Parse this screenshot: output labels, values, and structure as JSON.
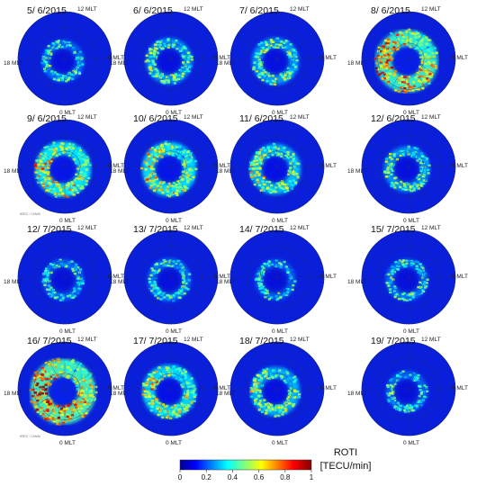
{
  "panels": [
    {
      "title": "5/ 6/2015",
      "activity": 0.15,
      "watermark": ""
    },
    {
      "title": "6/ 6/2015",
      "activity": 0.3,
      "watermark": ""
    },
    {
      "title": "7/ 6/2015",
      "activity": 0.32,
      "watermark": ""
    },
    {
      "title": "8/ 6/2015",
      "activity": 0.85,
      "watermark": ""
    },
    {
      "title": "9/ 6/2015",
      "activity": 0.62,
      "watermark": "IREC / UWM"
    },
    {
      "title": "10/ 6/2015",
      "activity": 0.58,
      "watermark": ""
    },
    {
      "title": "11/ 6/2015",
      "activity": 0.45,
      "watermark": ""
    },
    {
      "title": "12/ 6/2015",
      "activity": 0.28,
      "watermark": ""
    },
    {
      "title": "12/ 7/2015",
      "activity": 0.12,
      "watermark": ""
    },
    {
      "title": "13/ 7/2015",
      "activity": 0.18,
      "watermark": ""
    },
    {
      "title": "14/ 7/2015",
      "activity": 0.1,
      "watermark": ""
    },
    {
      "title": "15/ 7/2015",
      "activity": 0.15,
      "watermark": ""
    },
    {
      "title": "16/ 7/2015",
      "activity": 0.95,
      "watermark": "IREC / UWM"
    },
    {
      "title": "17/ 7/2015",
      "activity": 0.55,
      "watermark": ""
    },
    {
      "title": "18/ 7/2015",
      "activity": 0.4,
      "watermark": ""
    },
    {
      "title": "19/ 7/2015",
      "activity": 0.12,
      "watermark": ""
    }
  ],
  "mlt_labels": {
    "top": "12 MLT",
    "left": "18 MLT",
    "right": "6 MLT",
    "bottom": "0 MLT"
  },
  "colorbar": {
    "title": "ROTI",
    "units": "[TECU/min]",
    "ticks": [
      "0",
      "0.2",
      "0.4",
      "0.6",
      "0.8",
      "1"
    ],
    "colors": [
      "#00008f",
      "#0000ff",
      "#0080ff",
      "#00ffff",
      "#80ff80",
      "#ffff00",
      "#ff8000",
      "#ff0000",
      "#800000"
    ]
  }
}
